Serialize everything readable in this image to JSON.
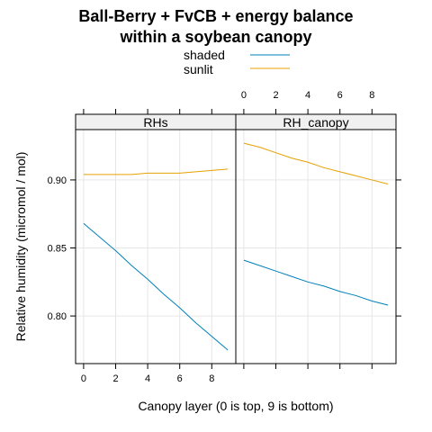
{
  "chart_data": {
    "type": "line",
    "title_line1": "Ball-Berry + FvCB + energy balance",
    "title_line2": "within a soybean canopy",
    "xlabel": "Canopy layer (0 is top, 9 is bottom)",
    "ylabel": "Relative humidity (micromol / mol)",
    "xlim": [
      -0.5,
      9.5
    ],
    "ylim": [
      0.765,
      0.937
    ],
    "x_ticks": [
      0,
      2,
      4,
      6,
      8
    ],
    "y_ticks": [
      0.8,
      0.85,
      0.9
    ],
    "y_tick_labels": [
      "0.80",
      "0.85",
      "0.90"
    ],
    "grid": true,
    "legend_position": "top",
    "legend": [
      {
        "name": "shaded",
        "color": "#0080b8"
      },
      {
        "name": "sunlit",
        "color": "#e6a000"
      }
    ],
    "panels": [
      {
        "strip": "RHs",
        "x": [
          0,
          1,
          2,
          3,
          4,
          5,
          6,
          7,
          8,
          9
        ],
        "series": [
          {
            "name": "shaded",
            "color": "#0080b8",
            "values": [
              0.868,
              0.858,
              0.848,
              0.837,
              0.827,
              0.816,
              0.806,
              0.795,
              0.785,
              0.775
            ]
          },
          {
            "name": "sunlit",
            "color": "#e6a000",
            "values": [
              0.904,
              0.904,
              0.904,
              0.904,
              0.905,
              0.905,
              0.905,
              0.906,
              0.907,
              0.908
            ]
          }
        ]
      },
      {
        "strip": "RH_canopy",
        "x": [
          0,
          1,
          2,
          3,
          4,
          5,
          6,
          7,
          8,
          9
        ],
        "series": [
          {
            "name": "shaded",
            "color": "#0080b8",
            "values": [
              0.841,
              0.837,
              0.833,
              0.829,
              0.825,
              0.822,
              0.818,
              0.815,
              0.811,
              0.808
            ]
          },
          {
            "name": "sunlit",
            "color": "#e6a000",
            "values": [
              0.927,
              0.924,
              0.92,
              0.916,
              0.913,
              0.909,
              0.906,
              0.903,
              0.9,
              0.897
            ]
          }
        ]
      }
    ]
  }
}
